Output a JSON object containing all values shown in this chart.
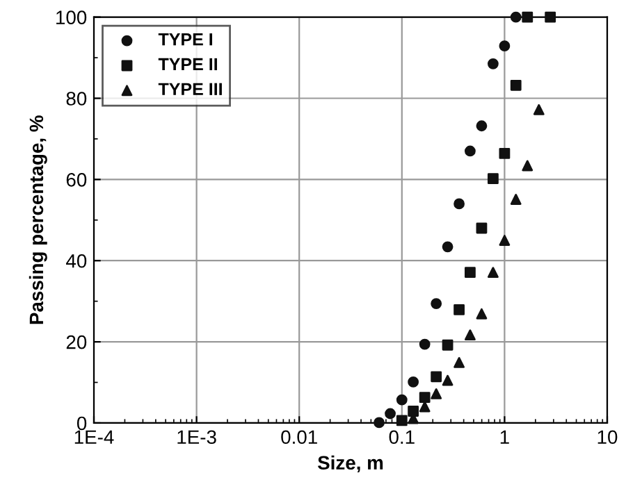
{
  "chart_data": {
    "type": "scatter",
    "xlabel": "Size, m",
    "ylabel": "Passing percentage, %",
    "log": "x",
    "xlim": [
      0.0001,
      10
    ],
    "xticks": [
      {
        "value": 0.0001,
        "label": "1E-4"
      },
      {
        "value": 0.001,
        "label": "1E-3"
      },
      0.01,
      0.1,
      1,
      10
    ],
    "ylim": [
      0,
      100
    ],
    "yticks": [
      0,
      20,
      40,
      60,
      80,
      100
    ],
    "grid": true,
    "legend": "top left",
    "series": [
      {
        "name": "TYPE I",
        "color": "#111111",
        "marker": "circle",
        "x": [
          0.06,
          0.077,
          0.1,
          0.129,
          0.167,
          0.216,
          0.279,
          0.361,
          0.462,
          0.598,
          0.773,
          1.0,
          1.29
        ],
        "values": [
          0.1,
          2.3,
          5.7,
          10.1,
          19.4,
          29.4,
          43.4,
          54.0,
          67.0,
          73.2,
          88.5,
          92.9,
          100
        ]
      },
      {
        "name": "TYPE II",
        "color": "#111111",
        "marker": "square",
        "x": [
          0.1,
          0.129,
          0.167,
          0.216,
          0.279,
          0.361,
          0.462,
          0.598,
          0.773,
          1.0,
          1.29,
          1.67,
          2.79
        ],
        "values": [
          0.6,
          2.9,
          6.3,
          11.4,
          19.2,
          27.9,
          37.1,
          48.0,
          60.2,
          66.4,
          83.2,
          100,
          100
        ]
      },
      {
        "name": "TYPE III",
        "color": "#111111",
        "marker": "triangle",
        "x": [
          0.129,
          0.167,
          0.216,
          0.279,
          0.361,
          0.462,
          0.598,
          0.773,
          1.0,
          1.29,
          1.67,
          2.16
        ],
        "values": [
          1.1,
          4.0,
          7.2,
          10.5,
          14.9,
          21.7,
          26.9,
          37.1,
          45.0,
          55.1,
          63.4,
          77.2
        ]
      }
    ]
  }
}
